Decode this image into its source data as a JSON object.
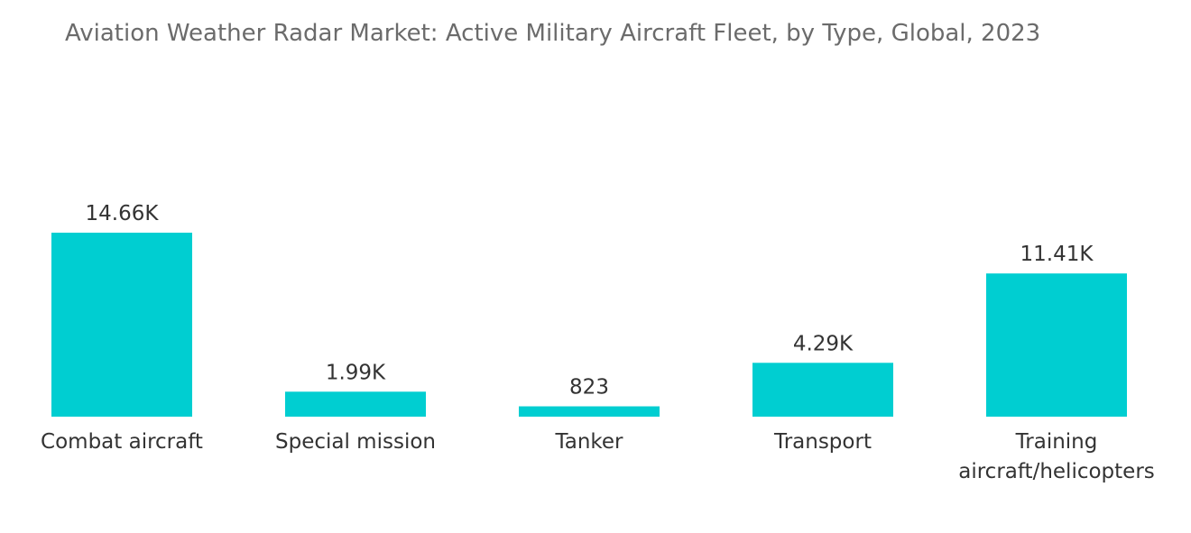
{
  "chart_data": {
    "type": "bar",
    "title": "Aviation Weather Radar Market: Active Military Aircraft Fleet, by Type, Global, 2023",
    "categories": [
      [
        "Combat aircraft"
      ],
      [
        "Special mission"
      ],
      [
        "Tanker"
      ],
      [
        "Transport"
      ],
      [
        "Training",
        "aircraft/helicopters"
      ]
    ],
    "values": [
      14660,
      1990,
      823,
      4290,
      11410
    ],
    "value_labels": [
      "14.66K",
      "1.99K",
      "823",
      "4.29K",
      "11.41K"
    ],
    "xlabel": "",
    "ylabel": "",
    "ylim": [
      0,
      14660
    ],
    "grid": false,
    "legend": "none",
    "colors": {
      "bar": "#00ced1"
    }
  }
}
